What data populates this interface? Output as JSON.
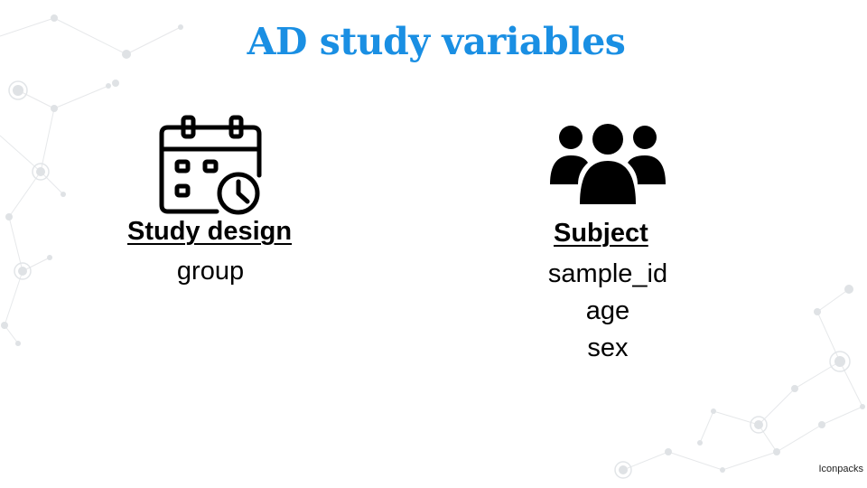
{
  "slide": {
    "title": "AD study variables",
    "title_color": "#1a8fe3"
  },
  "study_design": {
    "icon": "calendar-clock-icon",
    "heading": "Study design",
    "variables": [
      "group"
    ]
  },
  "subject": {
    "icon": "group-people-icon",
    "heading": "Subject",
    "variables": [
      "sample_id",
      "age",
      "sex"
    ]
  },
  "credit": "Iconpacks"
}
